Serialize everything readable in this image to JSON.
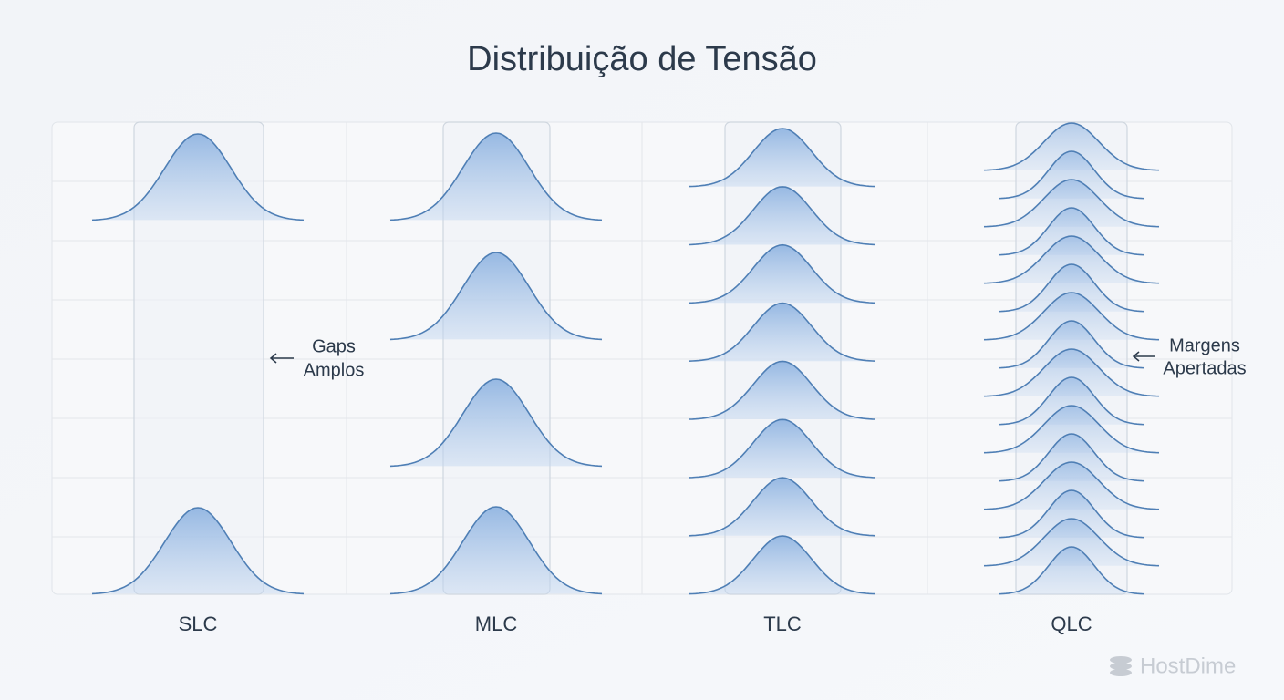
{
  "title": "Distribuição de Tensão",
  "columns": [
    {
      "label": "SLC"
    },
    {
      "label": "MLC"
    },
    {
      "label": "TLC"
    },
    {
      "label": "QLC"
    }
  ],
  "annotations": [
    {
      "lines": [
        "Gaps",
        "Amplos"
      ]
    },
    {
      "lines": [
        "Margens",
        "Apertadas"
      ]
    }
  ],
  "logo": "HostDime"
}
